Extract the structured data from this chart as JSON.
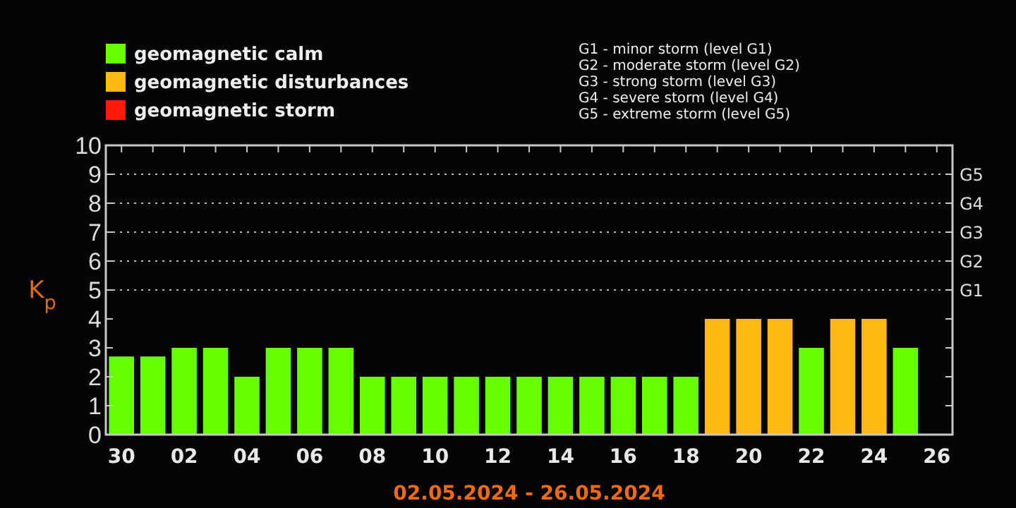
{
  "chart_data": {
    "type": "bar",
    "xlabel": "02.05.2024 - 26.05.2024",
    "ylabel": "K$_{p}$",
    "categories": [
      "30",
      null,
      "02",
      null,
      "04",
      null,
      "06",
      null,
      "08",
      null,
      "10",
      null,
      "12",
      null,
      "14",
      null,
      "16",
      null,
      "18",
      null,
      "20",
      null,
      "22",
      null,
      "24",
      null,
      "26"
    ],
    "stacked": true,
    "legend": "top left",
    "ylim": [
      0,
      10
    ],
    "yticks": [
      0,
      1,
      2,
      3,
      4,
      5,
      6,
      7,
      8,
      9,
      10
    ],
    "ref_lines": [
      {
        "axis": "y",
        "value": 5,
        "label": "G1",
        "line_style": "dotted"
      },
      {
        "axis": "y",
        "value": 6,
        "label": "G2",
        "line_style": "dotted"
      },
      {
        "axis": "y",
        "value": 7,
        "label": "G3",
        "line_style": "dotted"
      },
      {
        "axis": "y",
        "value": 8,
        "label": "G4",
        "line_style": "dotted"
      },
      {
        "axis": "y",
        "value": 9,
        "label": "G5",
        "line_style": "dotted"
      }
    ],
    "series": [
      {
        "name": "geomagnetic calm",
        "color": "#66ff00",
        "values": [
          2.7,
          2.7,
          3,
          3,
          2,
          3,
          3,
          3,
          2,
          2,
          2,
          2,
          2,
          2,
          2,
          2,
          2,
          2,
          2,
          null,
          null,
          null,
          3,
          null,
          null,
          3,
          null
        ]
      },
      {
        "name": "geomagnetic disturbances",
        "color": "#ffb912",
        "values": [
          null,
          null,
          null,
          null,
          null,
          null,
          null,
          null,
          null,
          null,
          null,
          null,
          null,
          null,
          null,
          null,
          null,
          null,
          null,
          4,
          4,
          4,
          null,
          4,
          4,
          null,
          null
        ]
      },
      {
        "name": "geomagnetic storm",
        "color": "#ff1a0a",
        "values": [
          null,
          null,
          null,
          null,
          null,
          null,
          null,
          null,
          null,
          null,
          null,
          null,
          null,
          null,
          null,
          null,
          null,
          null,
          null,
          null,
          null,
          null,
          null,
          null,
          null,
          null,
          null
        ]
      }
    ],
    "annotations": [
      "G1 - minor storm (level G1)",
      "G2 - moderate storm (level G2)",
      "G3 - strong storm (level G3)",
      "G4 - severe storm (level G4)",
      "G5 - extreme storm (level G5)"
    ]
  }
}
